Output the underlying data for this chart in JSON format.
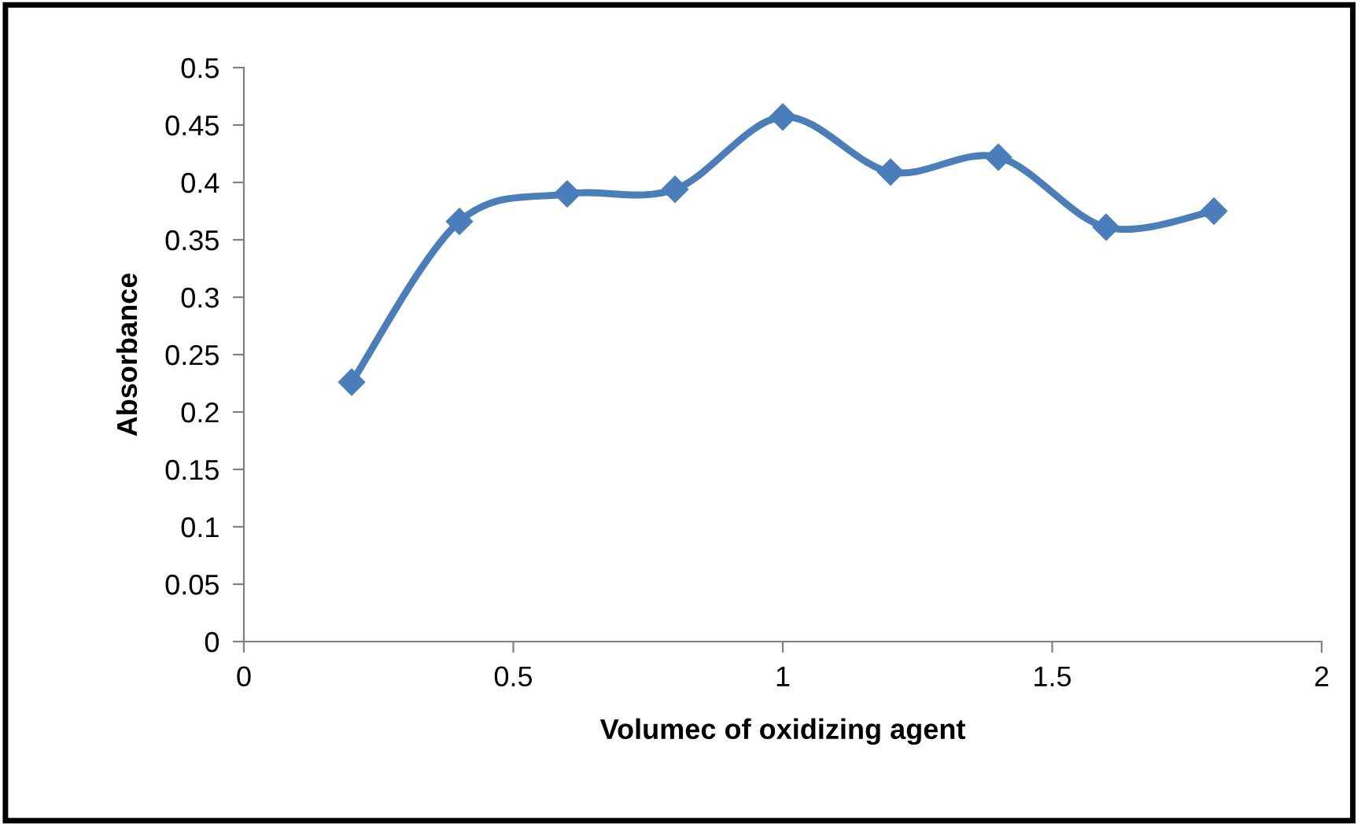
{
  "chart_data": {
    "type": "line",
    "xlabel": "Volumec of oxidizing agent",
    "ylabel": "Absorbance",
    "x": [
      0.2,
      0.4,
      0.6,
      0.8,
      1.0,
      1.2,
      1.4,
      1.6,
      1.8
    ],
    "series": [
      {
        "color": "#4a7ebb",
        "values": [
          0.226,
          0.366,
          0.39,
          0.394,
          0.457,
          0.409,
          0.422,
          0.361,
          0.375
        ]
      }
    ],
    "xlim": [
      0,
      2
    ],
    "xticks": [
      0,
      0.5,
      1,
      1.5,
      2
    ],
    "ylim": [
      0,
      0.5
    ],
    "yticks": [
      0,
      0.05,
      0.1,
      0.15,
      0.2,
      0.25,
      0.3,
      0.35,
      0.4,
      0.45,
      0.5
    ],
    "marker": "diamond",
    "line_style": "solid",
    "grid": false,
    "legend": false
  }
}
